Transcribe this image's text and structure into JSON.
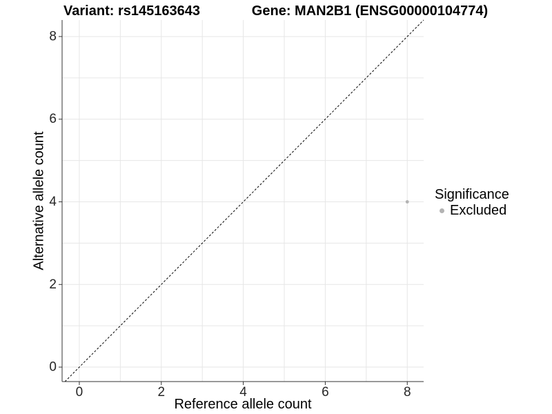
{
  "chart_data": {
    "type": "scatter",
    "titles": {
      "left": "Variant: rs145163643",
      "right": "Gene: MAN2B1 (ENSG00000104774)"
    },
    "xlabel": "Reference allele count",
    "ylabel": "Alternative allele count",
    "xlim": [
      -0.42,
      8.4
    ],
    "ylim": [
      -0.35,
      8.4
    ],
    "xticks": [
      0,
      2,
      4,
      6,
      8
    ],
    "yticks": [
      0,
      2,
      4,
      6,
      8
    ],
    "grid": {
      "show": true,
      "every": 1,
      "color": "#e6e6e6"
    },
    "identity_line": {
      "style": "dashed",
      "color": "#000000",
      "from": -0.35,
      "to": 8.4
    },
    "series": [
      {
        "name": "Excluded",
        "color": "#b3b3b3",
        "points": [
          {
            "x": 8,
            "y": 4
          }
        ]
      }
    ],
    "legend": {
      "title": "Significance",
      "position": "right",
      "items": [
        {
          "label": "Excluded",
          "color": "#b3b3b3"
        }
      ]
    }
  },
  "colors": {
    "axis_line": "#333333",
    "tick_mark": "#333333",
    "tick_label": "#262626",
    "grid_line": "#e6e6e6",
    "background": "#ffffff"
  }
}
